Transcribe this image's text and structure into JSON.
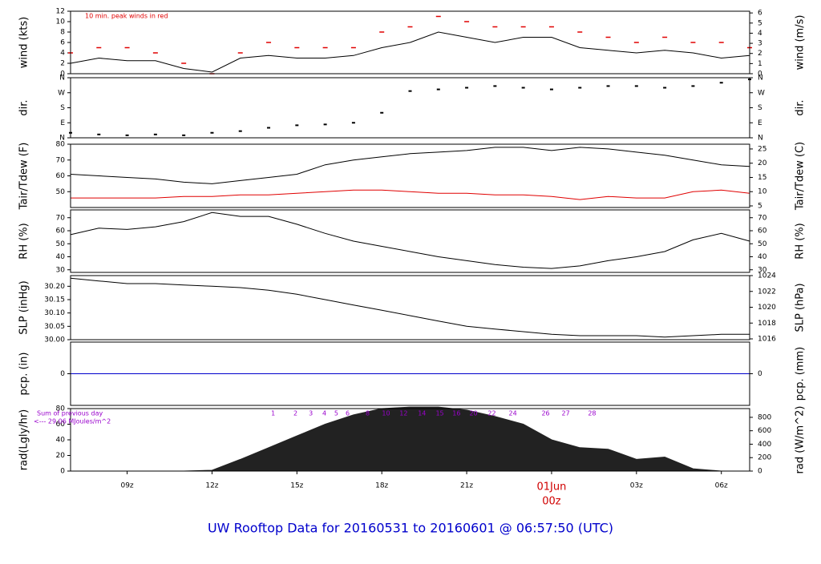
{
  "page_title": "UW Rooftop Data for 20160531  to  20160601 @ 06:57:50  (UTC)",
  "chart_data": [
    {
      "type": "line",
      "ylabel": "wind (kts)",
      "y2label": "wind (m/s)",
      "annotation": "10 min. peak winds in red",
      "xlim": [
        7,
        31
      ],
      "x": [
        7,
        8,
        9,
        10,
        11,
        12,
        13,
        14,
        15,
        16,
        17,
        18,
        19,
        20,
        21,
        22,
        23,
        24,
        25,
        26,
        27,
        28,
        29,
        30,
        31
      ],
      "ylim": [
        0,
        12
      ],
      "yticks": [
        0,
        2,
        4,
        6,
        8,
        10,
        12
      ],
      "y2lim": [
        0,
        6.17
      ],
      "y2ticks": [
        0,
        1,
        2,
        3,
        4,
        5,
        6
      ],
      "series": [
        {
          "color": "#000000",
          "values": [
            2,
            3,
            2.5,
            2.5,
            1,
            0.3,
            3,
            3.5,
            3,
            3,
            3.5,
            5,
            6,
            8,
            7,
            6,
            7,
            7,
            5,
            4.5,
            4,
            4.5,
            4,
            3,
            3.5
          ]
        },
        {
          "color": "#e00000",
          "marker": "dash",
          "values": [
            4,
            5,
            5,
            4,
            2,
            0,
            4,
            6,
            5,
            5,
            5,
            8,
            9,
            11,
            10,
            9,
            9,
            9,
            8,
            7,
            6,
            7,
            6,
            6,
            5
          ]
        }
      ]
    },
    {
      "type": "scatter",
      "ylabel": "dir.",
      "y2label": "dir.",
      "xlim": [
        7,
        31
      ],
      "x": [
        7,
        8,
        9,
        10,
        11,
        12,
        13,
        14,
        15,
        16,
        17,
        18,
        19,
        20,
        21,
        22,
        23,
        24,
        25,
        26,
        27,
        28,
        29,
        30,
        31
      ],
      "ylim": [
        0,
        360
      ],
      "yticks": [
        {
          "value": 0,
          "label": "N"
        },
        {
          "value": 90,
          "label": "E"
        },
        {
          "value": 180,
          "label": "S"
        },
        {
          "value": 270,
          "label": "W"
        },
        {
          "value": 360,
          "label": "N"
        }
      ],
      "series": [
        {
          "color": "#000000",
          "values": [
            30,
            20,
            15,
            20,
            15,
            30,
            40,
            60,
            75,
            80,
            90,
            150,
            280,
            290,
            300,
            310,
            300,
            290,
            300,
            310,
            310,
            300,
            310,
            330,
            350
          ]
        }
      ]
    },
    {
      "type": "line",
      "ylabel": "Tair/Tdew (F)",
      "y2label": "Tair/Tdew (C)",
      "xlim": [
        7,
        31
      ],
      "x": [
        7,
        8,
        9,
        10,
        11,
        12,
        13,
        14,
        15,
        16,
        17,
        18,
        19,
        20,
        21,
        22,
        23,
        24,
        25,
        26,
        27,
        28,
        29,
        30,
        31
      ],
      "ylim": [
        40,
        80
      ],
      "yticks": [
        50,
        60,
        70,
        80
      ],
      "y2lim": [
        4.44,
        26.67
      ],
      "y2ticks": [
        5,
        10,
        15,
        20,
        25
      ],
      "series": [
        {
          "color": "#000000",
          "values": [
            61,
            60,
            59,
            58,
            56,
            55,
            57,
            59,
            61,
            67,
            70,
            72,
            74,
            75,
            76,
            78,
            78,
            76,
            78,
            77,
            75,
            73,
            70,
            67,
            66
          ]
        },
        {
          "color": "#e00000",
          "values": [
            46,
            46,
            46,
            46,
            47,
            47,
            48,
            48,
            49,
            50,
            51,
            51,
            50,
            49,
            49,
            48,
            48,
            47,
            45,
            47,
            46,
            46,
            50,
            51,
            49
          ]
        }
      ]
    },
    {
      "type": "line",
      "ylabel": "RH (%)",
      "y2label": "RH (%)",
      "xlim": [
        7,
        31
      ],
      "x": [
        7,
        8,
        9,
        10,
        11,
        12,
        13,
        14,
        15,
        16,
        17,
        18,
        19,
        20,
        21,
        22,
        23,
        24,
        25,
        26,
        27,
        28,
        29,
        30,
        31
      ],
      "ylim": [
        28,
        76
      ],
      "yticks": [
        30,
        40,
        50,
        60,
        70
      ],
      "series": [
        {
          "color": "#000000",
          "values": [
            57,
            62,
            61,
            63,
            67,
            74,
            71,
            71,
            65,
            58,
            52,
            48,
            44,
            40,
            37,
            34,
            32,
            31,
            33,
            37,
            40,
            44,
            53,
            58,
            52
          ]
        }
      ]
    },
    {
      "type": "line",
      "ylabel": "SLP (inHg)",
      "y2label": "SLP (hPa)",
      "xlim": [
        7,
        31
      ],
      "x": [
        7,
        8,
        9,
        10,
        11,
        12,
        13,
        14,
        15,
        16,
        17,
        18,
        19,
        20,
        21,
        22,
        23,
        24,
        25,
        26,
        27,
        28,
        29,
        30,
        31
      ],
      "ylim": [
        30.0,
        30.24
      ],
      "yticks": [
        {
          "value": 30.0,
          "label": "30.00"
        },
        30.05,
        {
          "value": 30.1,
          "label": "30.10"
        },
        30.15,
        {
          "value": 30.2,
          "label": "30.20"
        }
      ],
      "y2lim": [
        1015.9,
        1024.0
      ],
      "y2ticks": [
        1016,
        1018,
        1020,
        1022,
        1024
      ],
      "series": [
        {
          "color": "#000000",
          "values": [
            30.23,
            30.22,
            30.21,
            30.21,
            30.205,
            30.2,
            30.195,
            30.185,
            30.17,
            30.15,
            30.13,
            30.11,
            30.09,
            30.07,
            30.05,
            30.04,
            30.03,
            30.02,
            30.015,
            30.015,
            30.015,
            30.01,
            30.015,
            30.02,
            30.02
          ]
        }
      ]
    },
    {
      "type": "line",
      "ylabel": "pcp. (in)",
      "y2label": "pcp. (mm)",
      "xlim": [
        7,
        31
      ],
      "x": [
        7,
        8,
        9,
        10,
        11,
        12,
        13,
        14,
        15,
        16,
        17,
        18,
        19,
        20,
        21,
        22,
        23,
        24,
        25,
        26,
        27,
        28,
        29,
        30,
        31
      ],
      "ylim": [
        -1,
        1
      ],
      "yticks": [
        0
      ],
      "y2lim": [
        -1,
        1
      ],
      "y2ticks": [
        0
      ],
      "series": [
        {
          "color": "#0000cc",
          "values": [
            0,
            0,
            0,
            0,
            0,
            0,
            0,
            0,
            0,
            0,
            0,
            0,
            0,
            0,
            0,
            0,
            0,
            0,
            0,
            0,
            0,
            0,
            0,
            0,
            0
          ]
        }
      ]
    },
    {
      "type": "area",
      "ylabel": "rad(Lgly/hr)",
      "y2label": "rad (W/m^2)",
      "annotations": [
        "Sum of previous day",
        "<--- 29.06 MJoules/m^2"
      ],
      "cumulative": {
        "x": [
          14.16,
          14.95,
          15.49,
          15.97,
          16.39,
          16.79,
          17.5,
          18.15,
          18.77,
          19.42,
          20.05,
          20.64,
          21.24,
          21.89,
          22.63,
          23.79,
          24.5,
          25.43
        ],
        "values": [
          1,
          2,
          3,
          4,
          5,
          6,
          8,
          10,
          12,
          14,
          15,
          16,
          20,
          22,
          24,
          26,
          27,
          28
        ],
        "color": "#9900cc"
      },
      "xlim": [
        7,
        31
      ],
      "x": [
        7,
        8,
        9,
        10,
        11,
        12,
        13,
        14,
        15,
        16,
        17,
        18,
        19,
        20,
        21,
        22,
        23,
        24,
        25,
        26,
        27,
        28,
        29,
        30,
        31
      ],
      "xticks": [
        {
          "value": 9,
          "label": "09z"
        },
        {
          "value": 12,
          "label": "12z"
        },
        {
          "value": 15,
          "label": "15z"
        },
        {
          "value": 18,
          "label": "18z"
        },
        {
          "value": 21,
          "label": "21z"
        },
        {
          "value": 24,
          "label": "00z",
          "color": "#d00000",
          "date": "01Jun"
        },
        {
          "value": 27,
          "label": "03z"
        },
        {
          "value": 30,
          "label": "06z"
        }
      ],
      "ylim": [
        0,
        80
      ],
      "yticks": [
        0,
        20,
        40,
        60,
        80
      ],
      "y2lim": [
        0,
        930
      ],
      "y2ticks": [
        0,
        200,
        400,
        600,
        800
      ],
      "series": [
        {
          "color": "#222222",
          "values": [
            0,
            0,
            0,
            0,
            0,
            1,
            15,
            30,
            45,
            60,
            72,
            80,
            82,
            82,
            78,
            70,
            60,
            40,
            30,
            28,
            15,
            18,
            3,
            0,
            0
          ]
        }
      ]
    }
  ]
}
